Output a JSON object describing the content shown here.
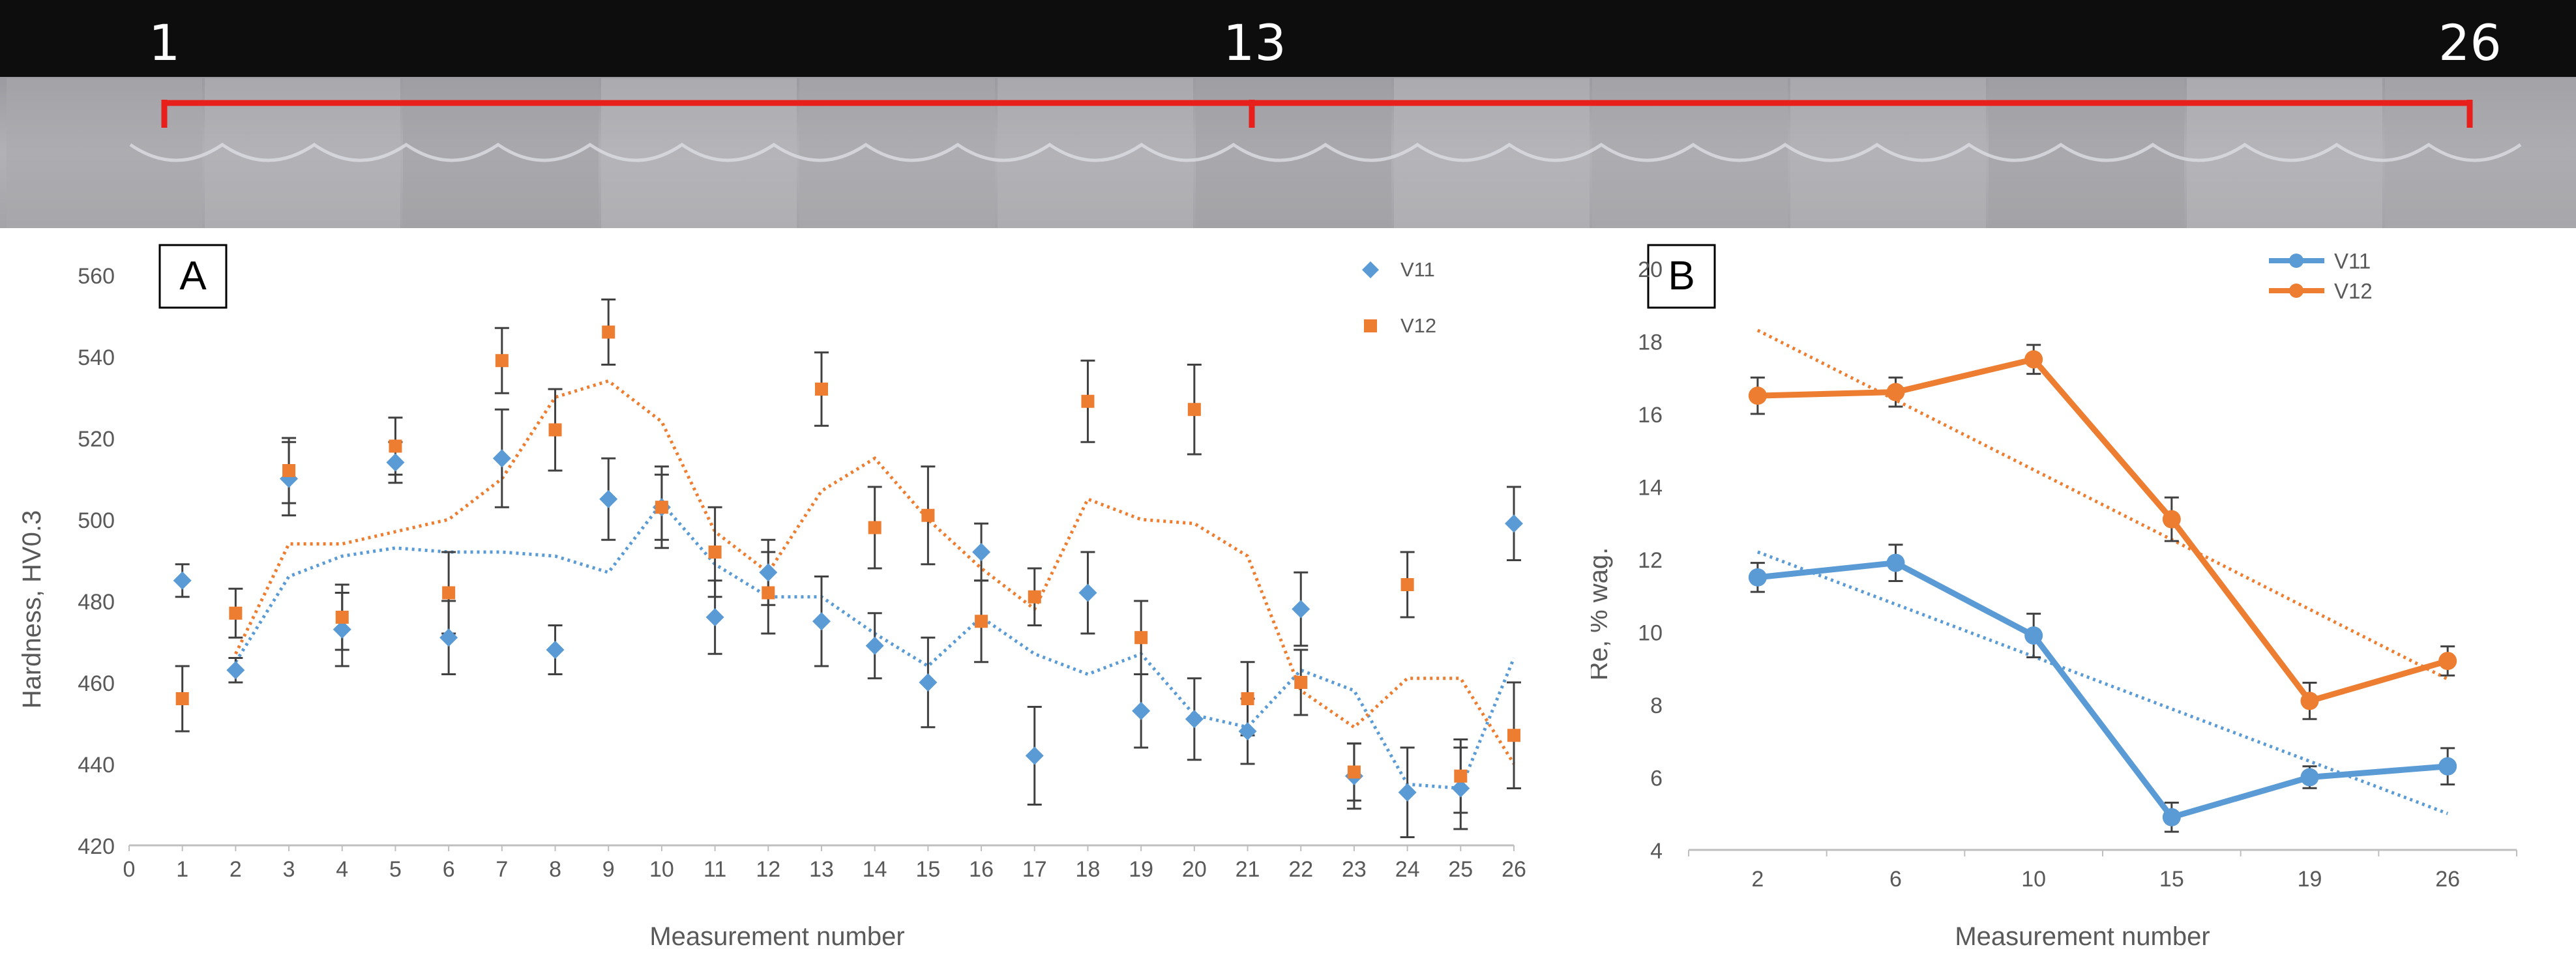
{
  "strip": {
    "labels": [
      "1",
      "13",
      "26"
    ]
  },
  "colors": {
    "v11": "#5b9bd5",
    "v12": "#ed7d31",
    "bracket": "#e8201c",
    "axis_text": "#595959",
    "grid": "#d9d9d9",
    "error_bar": "#404040"
  },
  "chart_data": [
    {
      "type": "scatter",
      "panel_label": "A",
      "xlabel": "Measurement number",
      "ylabel": "Hardness, HV0.3",
      "xlim": [
        0,
        26
      ],
      "ylim": [
        420,
        560
      ],
      "xticks": [
        0,
        1,
        2,
        3,
        4,
        5,
        6,
        7,
        8,
        9,
        10,
        11,
        12,
        13,
        14,
        15,
        16,
        17,
        18,
        19,
        20,
        21,
        22,
        23,
        24,
        25,
        26
      ],
      "yticks": [
        420,
        440,
        460,
        480,
        500,
        520,
        540,
        560
      ],
      "grid": false,
      "legend_position": "top-right",
      "x": [
        1,
        2,
        3,
        4,
        5,
        6,
        7,
        8,
        9,
        10,
        11,
        12,
        13,
        14,
        15,
        16,
        17,
        18,
        19,
        20,
        21,
        22,
        23,
        24,
        25,
        26
      ],
      "series": [
        {
          "name": "V11",
          "marker": "diamond",
          "values": [
            485,
            463,
            510,
            473,
            514,
            471,
            515,
            468,
            505,
            503,
            476,
            487,
            475,
            469,
            460,
            492,
            442,
            482,
            453,
            451,
            448,
            478,
            437,
            433,
            434,
            499
          ],
          "errors": [
            4,
            3,
            9,
            9,
            5,
            9,
            12,
            6,
            10,
            8,
            9,
            8,
            11,
            8,
            11,
            7,
            12,
            10,
            9,
            10,
            8,
            9,
            8,
            11,
            10,
            9
          ],
          "trend": [
            null,
            465,
            486,
            491,
            493,
            492,
            492,
            491,
            487,
            504,
            489,
            481,
            481,
            472,
            464,
            476,
            467,
            462,
            467,
            452,
            449,
            463,
            458,
            435,
            434,
            466
          ]
        },
        {
          "name": "V12",
          "marker": "square",
          "values": [
            456,
            477,
            512,
            476,
            518,
            482,
            539,
            522,
            546,
            503,
            492,
            482,
            532,
            498,
            501,
            475,
            481,
            529,
            471,
            527,
            456,
            460,
            438,
            484,
            437,
            447
          ],
          "errors": [
            8,
            6,
            8,
            8,
            7,
            10,
            8,
            10,
            8,
            10,
            11,
            10,
            9,
            10,
            12,
            10,
            7,
            10,
            9,
            11,
            9,
            8,
            7,
            8,
            9,
            13
          ],
          "trend": [
            null,
            467,
            494,
            494,
            497,
            500,
            510,
            530,
            534,
            524,
            497,
            487,
            507,
            515,
            500,
            488,
            478,
            505,
            500,
            499,
            491,
            458,
            449,
            461,
            461,
            440
          ]
        }
      ]
    },
    {
      "type": "line",
      "panel_label": "B",
      "xlabel": "Measurement number",
      "ylabel": "Re, % wag.",
      "categories": [
        "2",
        "6",
        "10",
        "15",
        "19",
        "26"
      ],
      "ylim": [
        4,
        20
      ],
      "yticks": [
        4,
        6,
        8,
        10,
        12,
        14,
        16,
        18,
        20
      ],
      "grid": false,
      "legend_position": "top-right",
      "series": [
        {
          "name": "V11",
          "values": [
            11.5,
            11.9,
            9.9,
            4.9,
            6.0,
            6.3
          ],
          "errors": [
            0.4,
            0.5,
            0.6,
            0.4,
            0.3,
            0.5
          ],
          "trend": [
            12.2,
            5.0
          ]
        },
        {
          "name": "V12",
          "values": [
            16.5,
            16.6,
            17.5,
            13.1,
            8.1,
            9.2
          ],
          "errors": [
            0.5,
            0.4,
            0.4,
            0.6,
            0.5,
            0.4
          ],
          "trend": [
            18.3,
            8.7
          ]
        }
      ]
    }
  ]
}
